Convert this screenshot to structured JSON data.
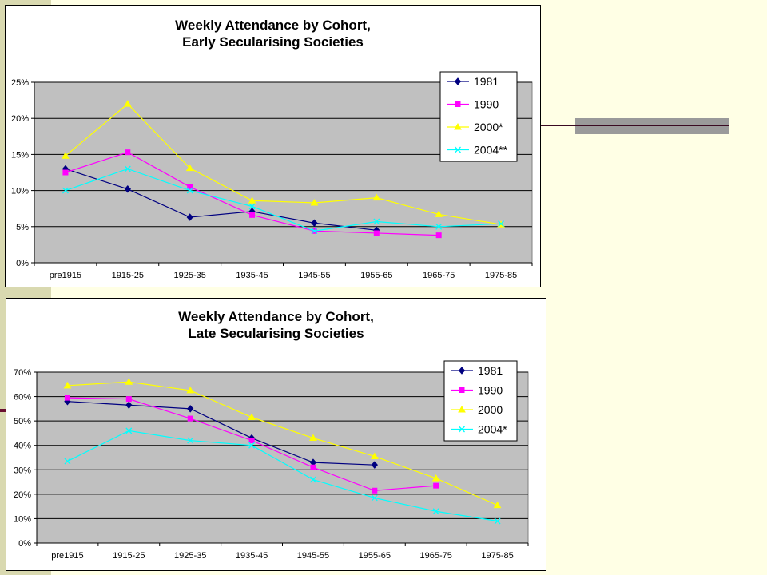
{
  "slide": {
    "background": "#ffffe5",
    "accent_dark": "#3a0a22",
    "accent_gray": "#9a9a9a"
  },
  "chart_data": [
    {
      "type": "line",
      "title": [
        "Weekly Attendance by Cohort,",
        "Early Secularising Societies"
      ],
      "categories": [
        "pre1915",
        "1915-25",
        "1925-35",
        "1935-45",
        "1945-55",
        "1955-65",
        "1965-75",
        "1975-85"
      ],
      "ylim": [
        0,
        25
      ],
      "yticks": [
        0,
        5,
        10,
        15,
        20,
        25
      ],
      "ytick_labels": [
        "0%",
        "5%",
        "10%",
        "15%",
        "20%",
        "25%"
      ],
      "grid": true,
      "plot_background": "#c0c0c0",
      "legend_position": "top-right",
      "series": [
        {
          "name": "1981",
          "color": "#000080",
          "marker": "diamond",
          "values": [
            13.0,
            10.2,
            6.3,
            7.1,
            5.5,
            4.5,
            null,
            null
          ]
        },
        {
          "name": "1990",
          "color": "#ff00ff",
          "marker": "square",
          "values": [
            12.5,
            15.3,
            10.5,
            6.6,
            4.4,
            4.1,
            3.8,
            null
          ]
        },
        {
          "name": "2000*",
          "color": "#ffff00",
          "marker": "triangle",
          "values": [
            14.8,
            22.0,
            13.1,
            8.6,
            8.3,
            9.0,
            6.7,
            5.3
          ]
        },
        {
          "name": "2004**",
          "color": "#00ffff",
          "marker": "x",
          "values": [
            10.0,
            13.0,
            10.0,
            7.8,
            4.4,
            5.7,
            5.0,
            5.4
          ]
        }
      ]
    },
    {
      "type": "line",
      "title": [
        "Weekly Attendance by Cohort,",
        "Late Secularising Societies"
      ],
      "categories": [
        "pre1915",
        "1915-25",
        "1925-35",
        "1935-45",
        "1945-55",
        "1955-65",
        "1965-75",
        "1975-85"
      ],
      "ylim": [
        0,
        70
      ],
      "yticks": [
        0,
        10,
        20,
        30,
        40,
        50,
        60,
        70
      ],
      "ytick_labels": [
        "0%",
        "10%",
        "20%",
        "30%",
        "40%",
        "50%",
        "60%",
        "70%"
      ],
      "grid": true,
      "plot_background": "#c0c0c0",
      "legend_position": "top-right",
      "series": [
        {
          "name": "1981",
          "color": "#000080",
          "marker": "diamond",
          "values": [
            58.0,
            56.5,
            55.0,
            43.0,
            33.0,
            32.0,
            null,
            null
          ]
        },
        {
          "name": "1990",
          "color": "#ff00ff",
          "marker": "square",
          "values": [
            59.5,
            59.0,
            51.0,
            42.0,
            31.0,
            21.5,
            23.5,
            null
          ]
        },
        {
          "name": "2000",
          "color": "#ffff00",
          "marker": "triangle",
          "values": [
            64.5,
            66.0,
            62.5,
            51.5,
            43.0,
            35.5,
            26.5,
            15.5
          ]
        },
        {
          "name": "2004*",
          "color": "#00ffff",
          "marker": "x",
          "values": [
            33.5,
            46.0,
            42.0,
            40.0,
            26.0,
            18.5,
            13.0,
            9.0
          ]
        }
      ]
    }
  ]
}
